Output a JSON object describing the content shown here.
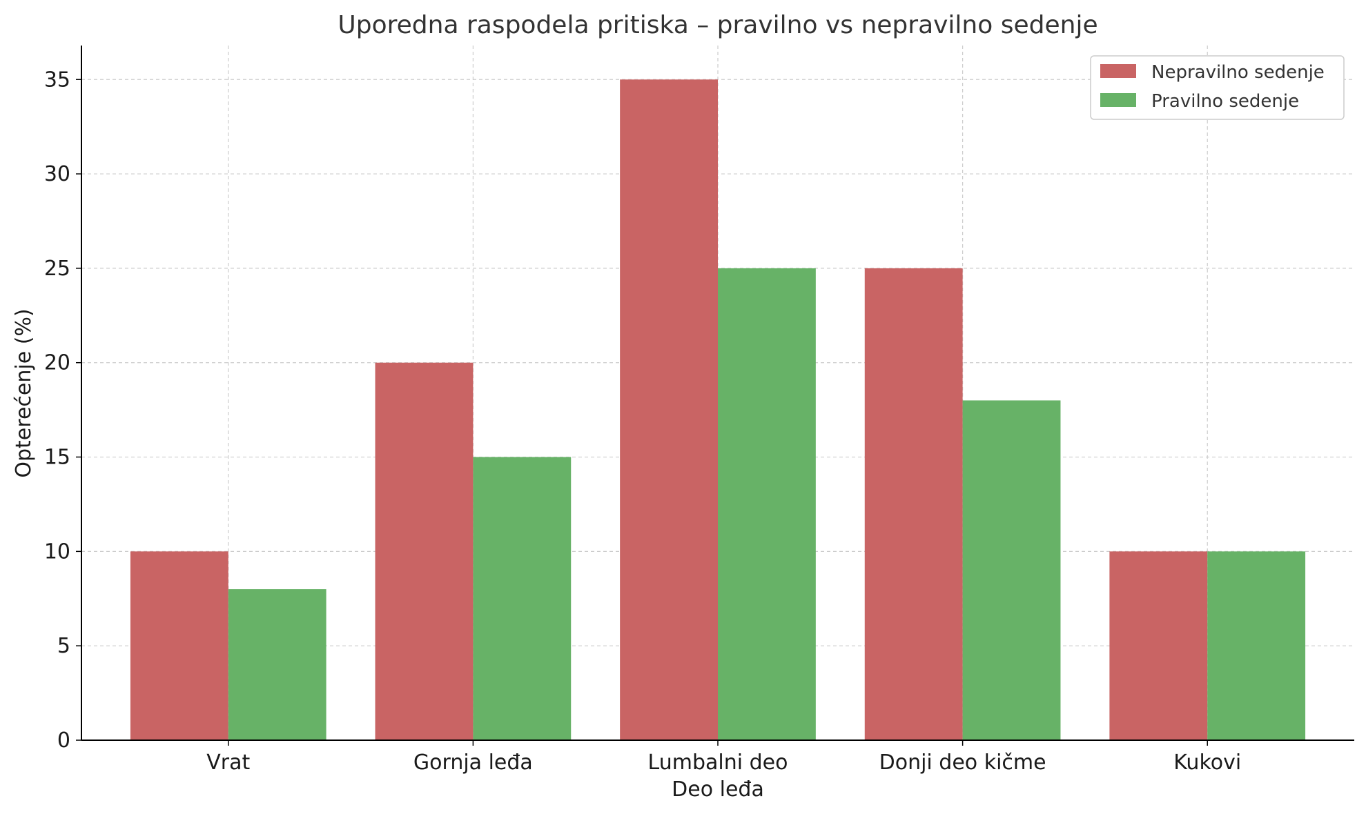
{
  "chart_data": {
    "type": "bar",
    "title": "Uporedna raspodela pritiska – pravilno vs nepravilno sedenje",
    "xlabel": "Deo leđa",
    "ylabel": "Opterećenje (%)",
    "categories": [
      "Vrat",
      "Gornja leđa",
      "Lumbalni deo",
      "Donji deo kičme",
      "Kukovi"
    ],
    "series": [
      {
        "name": "Nepravilno sedenje",
        "values": [
          10,
          20,
          35,
          25,
          10
        ],
        "color": "#c96464"
      },
      {
        "name": "Pravilno sedenje",
        "values": [
          8,
          15,
          25,
          18,
          10
        ],
        "color": "#67b267"
      }
    ],
    "ylim": [
      0,
      36.8
    ],
    "yticks": [
      0,
      5,
      10,
      15,
      20,
      25,
      30,
      35
    ],
    "grid": true,
    "legend_position": "top-right"
  }
}
